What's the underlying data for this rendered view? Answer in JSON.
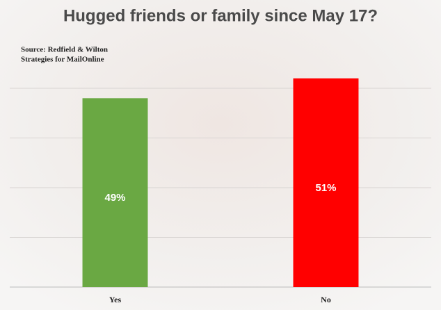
{
  "chart_data": {
    "type": "bar",
    "title": "Hugged friends or family since May 17?",
    "source": [
      "Source: Redfield & Wilton",
      "Strategies for MailOnline"
    ],
    "categories": [
      "Yes",
      "No"
    ],
    "values": [
      49,
      51
    ],
    "value_labels": [
      "49%",
      "51%"
    ],
    "colors": [
      "#6aa843",
      "#ff0000"
    ],
    "ylim": [
      30,
      55
    ],
    "yticks": [
      35,
      40,
      45,
      50
    ],
    "grid": true
  }
}
